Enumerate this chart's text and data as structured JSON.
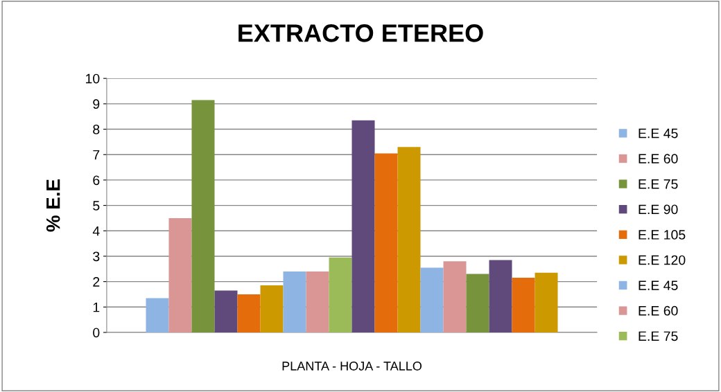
{
  "chart_data": {
    "type": "bar",
    "title": "EXTRACTO ETEREO",
    "ylabel": "% E.E",
    "categories": [
      "PLANTA - HOJA - TALLO"
    ],
    "series": [
      {
        "name": "E.E 45",
        "color": "#8eb4e3",
        "values": [
          1.35
        ]
      },
      {
        "name": "E.E 60",
        "color": "#d99694",
        "values": [
          4.5
        ]
      },
      {
        "name": "E.E 75",
        "color": "#77933c",
        "values": [
          9.15
        ]
      },
      {
        "name": "E.E 90",
        "color": "#604a7b",
        "values": [
          1.65
        ]
      },
      {
        "name": "E.E 105",
        "color": "#e46c0a",
        "values": [
          1.5
        ]
      },
      {
        "name": "E.E 120",
        "color": "#cc9900",
        "values": [
          1.85
        ]
      },
      {
        "name": "E.E 45",
        "color": "#8eb4e3",
        "values": [
          2.4
        ]
      },
      {
        "name": "E.E 60",
        "color": "#d99694",
        "values": [
          2.4
        ]
      },
      {
        "name": "E.E 75",
        "color": "#9bbb59",
        "values": [
          2.95
        ]
      },
      {
        "color": "#604a7b",
        "values": [
          8.35
        ]
      },
      {
        "color": "#e46c0a",
        "values": [
          7.05
        ]
      },
      {
        "color": "#cc9900",
        "values": [
          7.3
        ]
      },
      {
        "color": "#8eb4e3",
        "values": [
          2.55
        ]
      },
      {
        "color": "#d99694",
        "values": [
          2.8
        ]
      },
      {
        "color": "#77933c",
        "values": [
          2.3
        ]
      },
      {
        "color": "#604a7b",
        "values": [
          2.85
        ]
      },
      {
        "color": "#e46c0a",
        "values": [
          2.15
        ]
      },
      {
        "color": "#cc9900",
        "values": [
          2.35
        ]
      }
    ],
    "ylim": [
      0,
      10
    ],
    "yticks": [
      0,
      1,
      2,
      3,
      4,
      5,
      6,
      7,
      8,
      9,
      10
    ],
    "grid": "y",
    "legend": "right"
  }
}
